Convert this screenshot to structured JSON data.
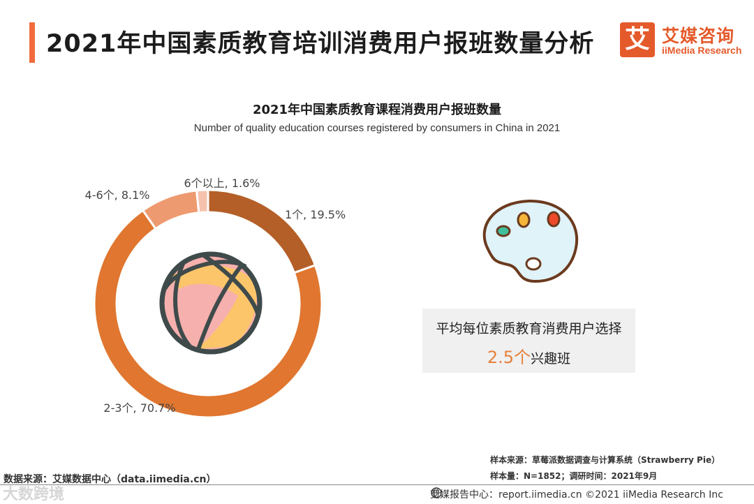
{
  "header": {
    "title": "2021年中国素质教育培训消费用户报班数量分析",
    "logo_mark": "艾",
    "logo_cn": "艾媒咨询",
    "logo_en": "iiMedia Research"
  },
  "chart_data": {
    "type": "pie",
    "title": "2021年中国素质教育课程消费用户报班数量",
    "subtitle": "Number of quality education courses registered by consumers in China in 2021",
    "categories": [
      "1个",
      "2-3个",
      "4-6个",
      "6个以上"
    ],
    "values": [
      19.5,
      70.7,
      8.1,
      1.6
    ],
    "value_format": "percent",
    "slice_labels": [
      "1个, 19.5%",
      "2-3个, 70.7%",
      "4-6个, 8.1%",
      "6个以上, 1.6%"
    ],
    "colors": [
      "#b45f28",
      "#e0762f",
      "#ee9a70",
      "#f5c2ae"
    ],
    "donut": true,
    "legend": "none"
  },
  "info": {
    "line1": "平均每位素质教育消费用户选择",
    "number": "2.5个",
    "suffix": "兴趣班"
  },
  "notes": {
    "sample_source": "样本来源：草莓派数据调查与计算系统（Strawberry Pie）",
    "sample_size": "样本量：N=1852；调研时间：2021年9月"
  },
  "footer": {
    "data_source": "数据来源：艾媒数据中心（data.iimedia.cn）",
    "right": "艾媒报告中心：report.iimedia.cn   ©2021  iiMedia Research  Inc",
    "watermark": "大数跨境"
  },
  "icons": [
    "ball-icon",
    "palette-icon",
    "globe-icon"
  ]
}
